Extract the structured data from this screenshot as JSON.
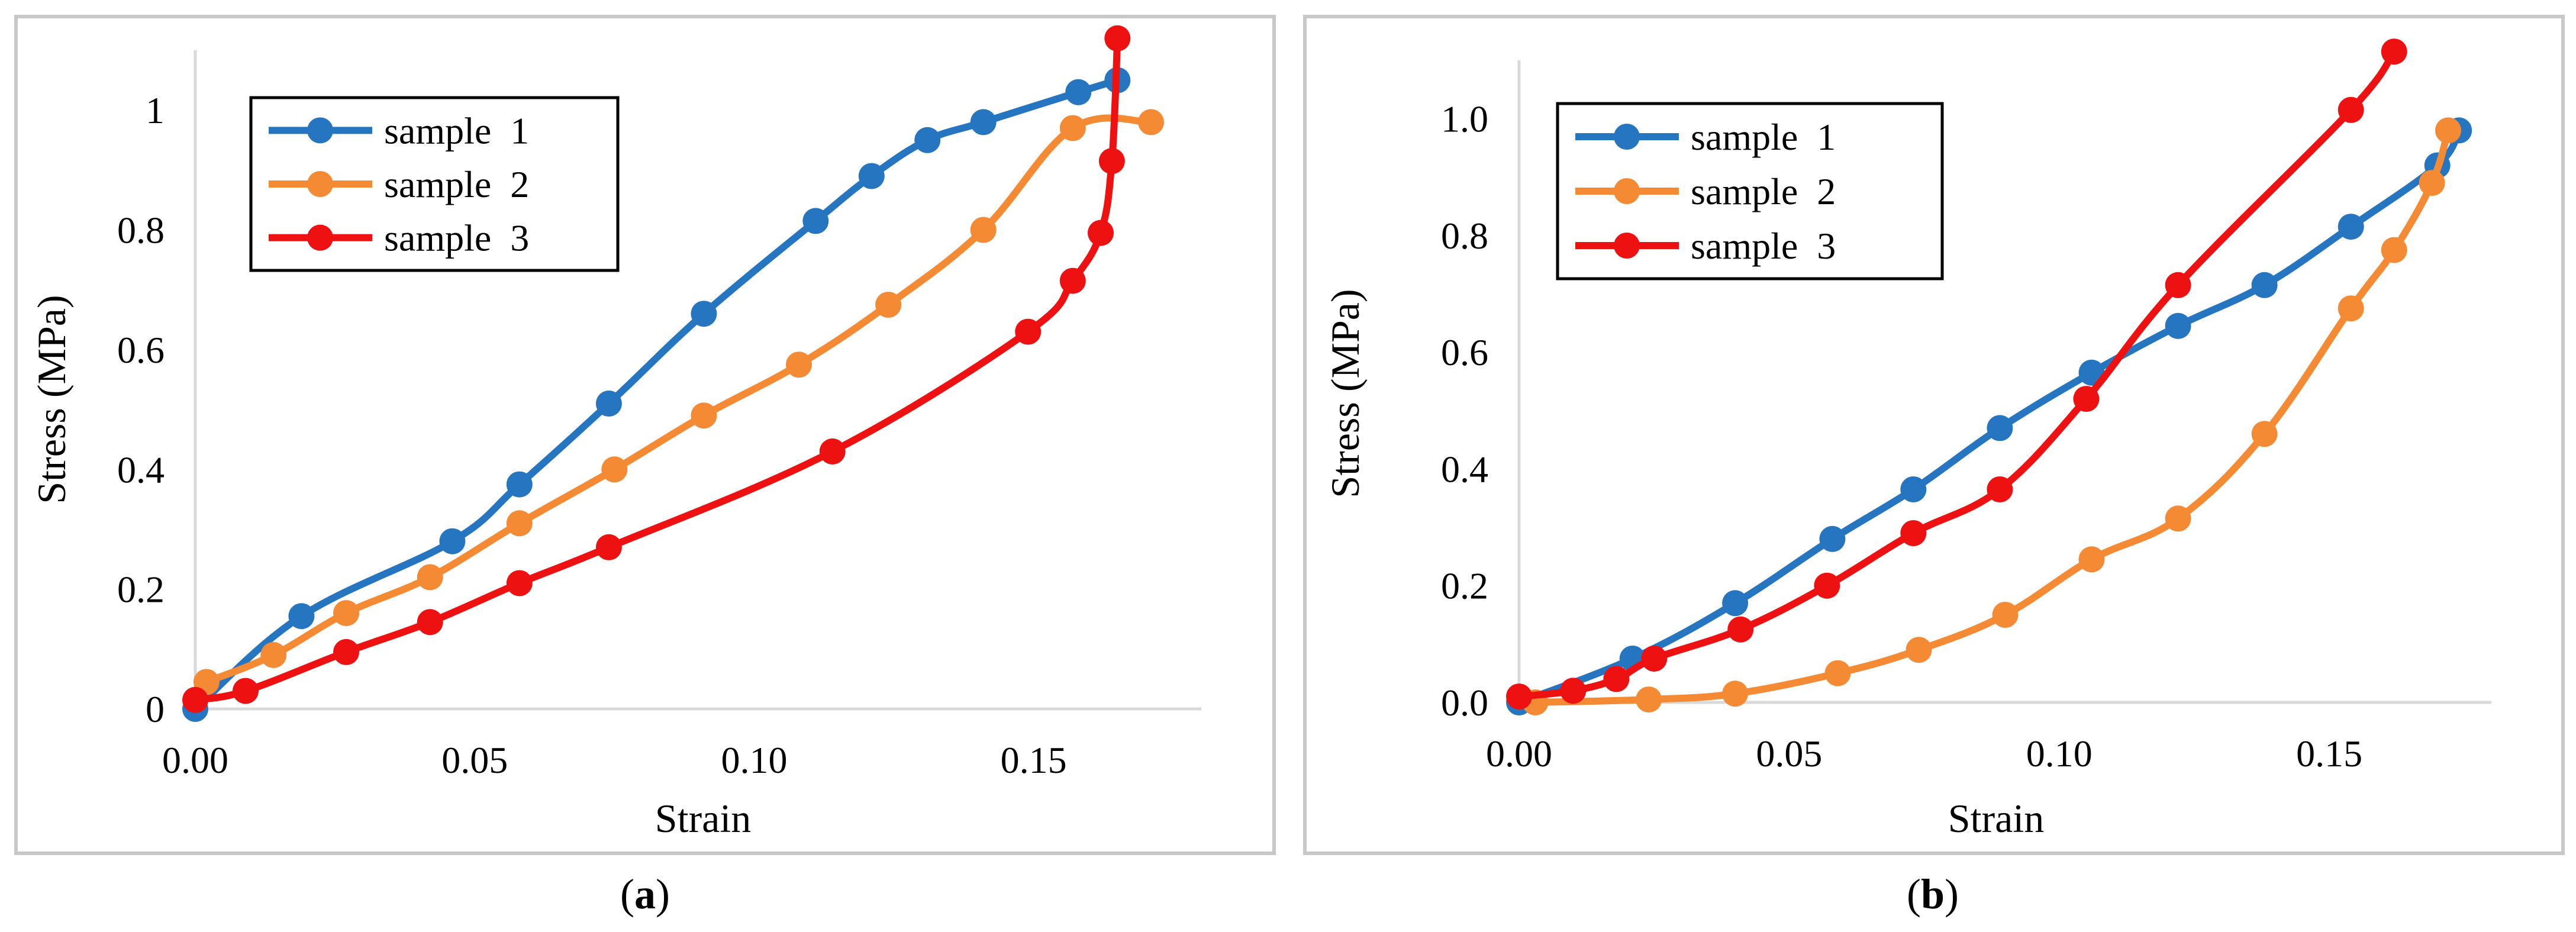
{
  "colors": {
    "sample1": "#2575C0",
    "sample2": "#F58A34",
    "sample3": "#EE1111",
    "axis": "#D9D9D9",
    "frame": "#C8C8C8",
    "text": "#000000"
  },
  "captions": {
    "a": "a",
    "b": "b"
  },
  "chart_data": [
    {
      "id": "a",
      "type": "line",
      "xlabel": "Strain",
      "ylabel": "Stress (MPa)",
      "xlim": [
        0,
        0.18
      ],
      "ylim": [
        0,
        1.1
      ],
      "xticks": [
        0,
        0.05,
        0.1,
        0.15
      ],
      "xtick_labels": [
        "0.00",
        "0.05",
        "0.10",
        "0.15"
      ],
      "yticks": [
        0,
        0.2,
        0.4,
        0.6,
        0.8,
        1
      ],
      "ytick_labels": [
        "0",
        "0.2",
        "0.4",
        "0.6",
        "0.8",
        "1"
      ],
      "legend": "top-left",
      "series": [
        {
          "name": "sample  1",
          "color_key": "sample1",
          "x": [
            0.0,
            0.019,
            0.046,
            0.058,
            0.074,
            0.091,
            0.111,
            0.121,
            0.131,
            0.141,
            0.158,
            0.165
          ],
          "y": [
            0.0,
            0.155,
            0.28,
            0.375,
            0.51,
            0.66,
            0.815,
            0.89,
            0.95,
            0.98,
            1.03,
            1.05
          ]
        },
        {
          "name": "sample  2",
          "color_key": "sample2",
          "x": [
            0.002,
            0.014,
            0.027,
            0.042,
            0.058,
            0.075,
            0.091,
            0.108,
            0.124,
            0.141,
            0.157,
            0.171
          ],
          "y": [
            0.045,
            0.09,
            0.16,
            0.22,
            0.31,
            0.4,
            0.49,
            0.575,
            0.675,
            0.8,
            0.97,
            0.98
          ]
        },
        {
          "name": "sample  3",
          "color_key": "sample3",
          "x": [
            0.0,
            0.009,
            0.027,
            0.042,
            0.058,
            0.074,
            0.114,
            0.149,
            0.157,
            0.162,
            0.164,
            0.165
          ],
          "y": [
            0.015,
            0.03,
            0.095,
            0.145,
            0.21,
            0.27,
            0.43,
            0.63,
            0.715,
            0.795,
            0.915,
            1.12
          ]
        }
      ]
    },
    {
      "id": "b",
      "type": "line",
      "xlabel": "Strain",
      "ylabel": "Stress (MPa)",
      "xlim": [
        0,
        0.18
      ],
      "ylim": [
        0,
        1.1
      ],
      "xticks": [
        0,
        0.05,
        0.1,
        0.15
      ],
      "xtick_labels": [
        "0.00",
        "0.05",
        "0.10",
        "0.15"
      ],
      "yticks": [
        0,
        0.2,
        0.4,
        0.6,
        0.8,
        1
      ],
      "ytick_labels": [
        "0.0",
        "0.2",
        "0.4",
        "0.6",
        "0.8",
        "1.0"
      ],
      "legend": "top-left",
      "series": [
        {
          "name": "sample  1",
          "color_key": "sample1",
          "x": [
            0.0,
            0.021,
            0.04,
            0.058,
            0.073,
            0.089,
            0.106,
            0.122,
            0.138,
            0.154,
            0.17,
            0.174
          ],
          "y": [
            0.0,
            0.075,
            0.17,
            0.28,
            0.365,
            0.47,
            0.565,
            0.645,
            0.715,
            0.815,
            0.92,
            0.98
          ]
        },
        {
          "name": "sample  2",
          "color_key": "sample2",
          "x": [
            0.003,
            0.024,
            0.04,
            0.059,
            0.074,
            0.09,
            0.106,
            0.122,
            0.138,
            0.154,
            0.162,
            0.169,
            0.172
          ],
          "y": [
            0.0,
            0.005,
            0.015,
            0.05,
            0.09,
            0.15,
            0.245,
            0.315,
            0.46,
            0.675,
            0.775,
            0.89,
            0.98
          ]
        },
        {
          "name": "sample  3",
          "color_key": "sample3",
          "x": [
            0.0,
            0.01,
            0.018,
            0.025,
            0.041,
            0.057,
            0.073,
            0.089,
            0.105,
            0.122,
            0.154,
            0.162
          ],
          "y": [
            0.01,
            0.02,
            0.04,
            0.075,
            0.125,
            0.2,
            0.29,
            0.365,
            0.52,
            0.715,
            1.015,
            1.115
          ]
        }
      ]
    }
  ]
}
